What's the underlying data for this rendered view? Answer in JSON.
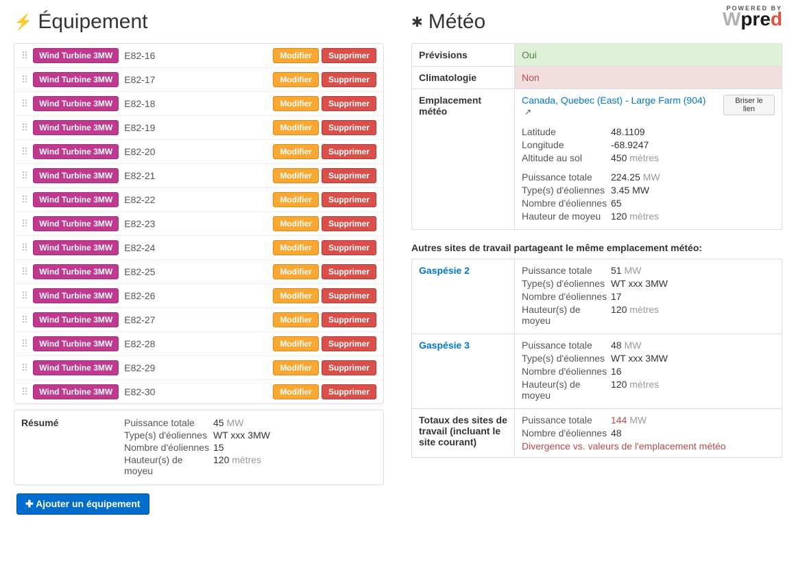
{
  "colors": {
    "badge_bg": "#c0398f",
    "btn_modify_bg": "#faa732",
    "btn_delete_bg": "#da4f49",
    "btn_primary_bg": "#006dcc",
    "row_success_bg": "#dff0d8",
    "row_error_bg": "#f2dede",
    "link": "#0077cc",
    "red": "#b94a48"
  },
  "left": {
    "title": "Équipement",
    "equipment_type_label": "Wind Turbine 3MW",
    "modify_label": "Modifier",
    "delete_label": "Supprimer",
    "items": [
      {
        "name": "E82-16"
      },
      {
        "name": "E82-17"
      },
      {
        "name": "E82-18"
      },
      {
        "name": "E82-19"
      },
      {
        "name": "E82-20"
      },
      {
        "name": "E82-21"
      },
      {
        "name": "E82-22"
      },
      {
        "name": "E82-23"
      },
      {
        "name": "E82-24"
      },
      {
        "name": "E82-25"
      },
      {
        "name": "E82-26"
      },
      {
        "name": "E82-27"
      },
      {
        "name": "E82-28"
      },
      {
        "name": "E82-29"
      },
      {
        "name": "E82-30"
      }
    ],
    "summary": {
      "title": "Résumé",
      "rows": {
        "power_label": "Puissance totale",
        "power_value": "45",
        "power_unit": "MW",
        "type_label": "Type(s) d'éoliennes",
        "type_value": "WT xxx 3MW",
        "count_label": "Nombre d'éoliennes",
        "count_value": "15",
        "hub_label": "Hauteur(s) de moyeu",
        "hub_value": "120",
        "hub_unit": "mètres"
      }
    },
    "add_button": "Ajouter un équipement"
  },
  "right": {
    "title": "Météo",
    "powered_by": "POWERED BY",
    "forecast_label": "Prévisions",
    "forecast_value": "Oui",
    "climato_label": "Climatologie",
    "climato_value": "Non",
    "location_label": "Emplacement météo",
    "location_link": "Canada, Quebec (East) - Large Farm (904)",
    "break_link_label": "Briser le lien",
    "loc": {
      "lat_label": "Latitude",
      "lat_value": "48.1109",
      "lon_label": "Longitude",
      "lon_value": "-68.9247",
      "alt_label": "Altitude au sol",
      "alt_value": "450",
      "alt_unit": "mètres",
      "power_label": "Puissance totale",
      "power_value": "224.25",
      "power_unit": "MW",
      "type_label": "Type(s) d'éoliennes",
      "type_value": "3.45 MW",
      "count_label": "Nombre d'éoliennes",
      "count_value": "65",
      "hub_label": "Hauteur de moyeu",
      "hub_value": "120",
      "hub_unit": "mètres"
    },
    "other_sites_title": "Autres sites de travail partageant le même emplacement météo:",
    "sites": [
      {
        "name": "Gaspésie 2",
        "power_label": "Puissance totale",
        "power_value": "51",
        "power_unit": "MW",
        "type_label": "Type(s) d'éoliennes",
        "type_value": "WT xxx 3MW",
        "count_label": "Nombre d'éoliennes",
        "count_value": "17",
        "hub_label": "Hauteur(s) de moyeu",
        "hub_value": "120",
        "hub_unit": "mètres"
      },
      {
        "name": "Gaspésie 3",
        "power_label": "Puissance totale",
        "power_value": "48",
        "power_unit": "MW",
        "type_label": "Type(s) d'éoliennes",
        "type_value": "WT xxx 3MW",
        "count_label": "Nombre d'éoliennes",
        "count_value": "16",
        "hub_label": "Hauteur(s) de moyeu",
        "hub_value": "120",
        "hub_unit": "mètres"
      }
    ],
    "totals": {
      "title": "Totaux des sites de travail (incluant le site courant)",
      "power_label": "Puissance totale",
      "power_value": "144",
      "power_unit": "MW",
      "count_label": "Nombre d'éoliennes",
      "count_value": "48",
      "divergence": "Divergence vs. valeurs de l'emplacement météo"
    }
  }
}
